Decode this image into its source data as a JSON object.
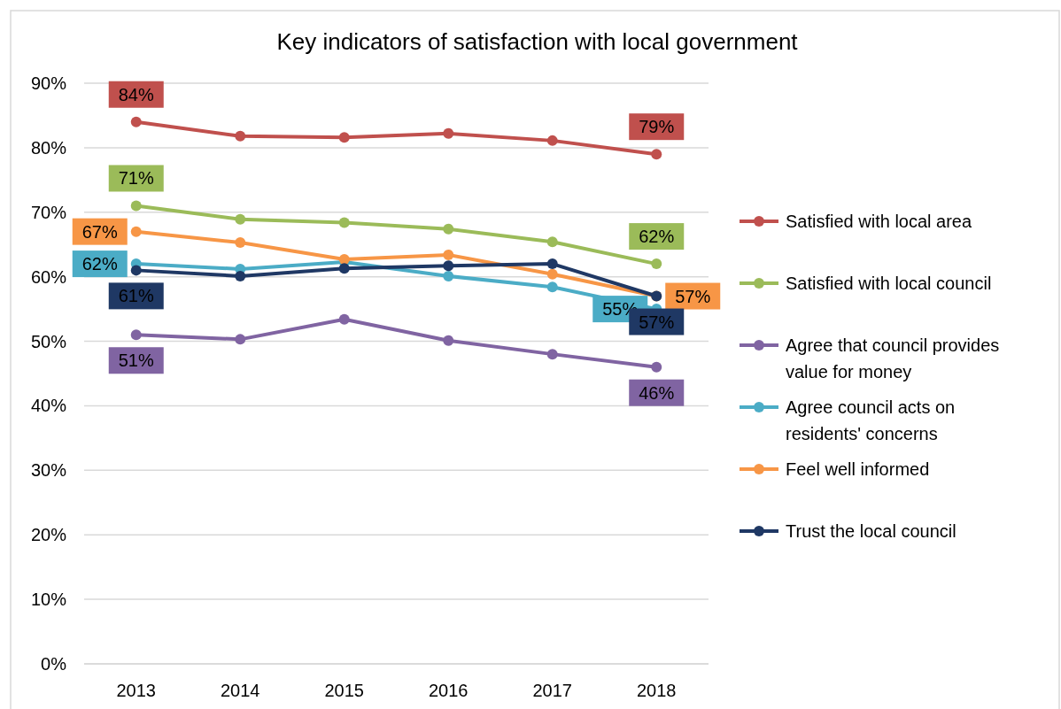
{
  "chart_data": {
    "type": "line",
    "title": "Key indicators of satisfaction with local government",
    "categories": [
      "2013",
      "2014",
      "2015",
      "2016",
      "2017",
      "2018"
    ],
    "ylim": [
      0,
      90
    ],
    "yticks": [
      {
        "value": 0,
        "label": "0%"
      },
      {
        "value": 10,
        "label": "10%"
      },
      {
        "value": 20,
        "label": "20%"
      },
      {
        "value": 30,
        "label": "30%"
      },
      {
        "value": 40,
        "label": "40%"
      },
      {
        "value": 50,
        "label": "50%"
      },
      {
        "value": 60,
        "label": "60%"
      },
      {
        "value": 70,
        "label": "70%"
      },
      {
        "value": 80,
        "label": "80%"
      },
      {
        "value": 90,
        "label": "90%"
      }
    ],
    "grid": "y",
    "legend": "right",
    "marker": "circle",
    "line_style": "solid",
    "series": [
      {
        "name": "Satisfied with local area",
        "color": "#c0504d",
        "values": [
          84,
          81.8,
          81.6,
          82.2,
          81.1,
          79
        ],
        "value_labels": [
          "84%",
          null,
          null,
          null,
          null,
          "79%"
        ]
      },
      {
        "name": "Satisfied with local council",
        "color": "#9bbb59",
        "values": [
          71,
          68.9,
          68.4,
          67.4,
          65.4,
          62
        ],
        "value_labels": [
          "71%",
          null,
          null,
          null,
          null,
          "62%"
        ]
      },
      {
        "name": "Agree that council provides value for money",
        "color": "#8064a2",
        "values": [
          51,
          50.3,
          53.4,
          50.1,
          48,
          46
        ],
        "value_labels": [
          "51%",
          null,
          null,
          null,
          null,
          "46%"
        ]
      },
      {
        "name": "Agree council acts on residents' concerns",
        "color": "#4bacc6",
        "values": [
          62,
          61.2,
          62.3,
          60.1,
          58.4,
          55
        ],
        "value_labels": [
          "62%",
          null,
          null,
          null,
          null,
          "55%"
        ]
      },
      {
        "name": "Feel well informed",
        "color": "#f79646",
        "values": [
          67,
          65.3,
          62.7,
          63.4,
          60.4,
          57
        ],
        "value_labels": [
          "67%",
          null,
          null,
          null,
          null,
          "57%"
        ]
      },
      {
        "name": "Trust the local council",
        "color": "#1f3864",
        "values": [
          61,
          60.1,
          61.3,
          61.7,
          62,
          57
        ],
        "value_labels": [
          "61%",
          null,
          null,
          null,
          null,
          "57%"
        ]
      }
    ]
  }
}
